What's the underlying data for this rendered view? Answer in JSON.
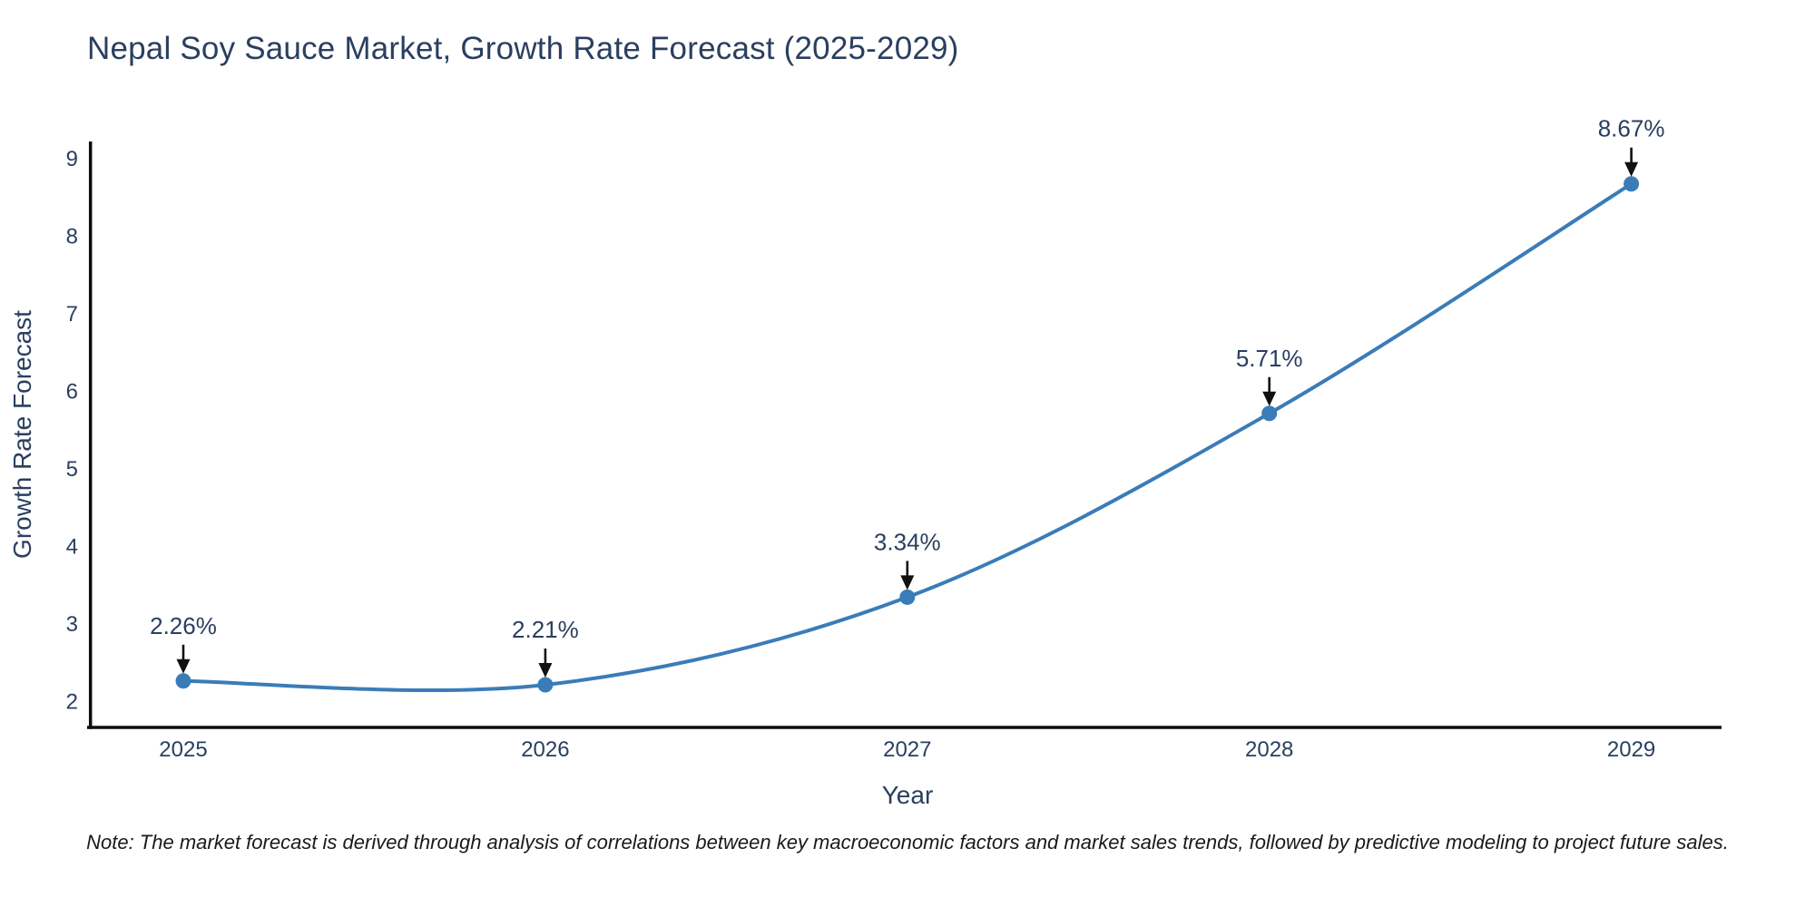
{
  "chart_data": {
    "type": "line",
    "title": "Nepal Soy Sauce Market, Growth Rate Forecast (2025-2029)",
    "xlabel": "Year",
    "ylabel": "Growth Rate Forecast",
    "categories": [
      "2025",
      "2026",
      "2027",
      "2028",
      "2029"
    ],
    "series": [
      {
        "name": "Growth Rate Forecast",
        "values": [
          2.26,
          2.21,
          3.34,
          5.71,
          8.67
        ]
      }
    ],
    "point_labels": [
      "2.26%",
      "2.21%",
      "3.34%",
      "5.71%",
      "8.67%"
    ],
    "ylim": [
      2,
      9
    ],
    "yticks": [
      2,
      3,
      4,
      5,
      6,
      7,
      8,
      9
    ],
    "line_shape": "spline",
    "grid": false,
    "legend_position": "none",
    "note": "Note: The market forecast is derived through analysis of correlations between key macroeconomic factors and market sales trends, followed by predictive modeling to project future sales.",
    "colors": {
      "line": "#3a7cb8",
      "marker": "#3a7cb8",
      "axis_line": "#0d0d0d",
      "text": "#2a3f5f",
      "arrow": "#111111",
      "background": "#ffffff"
    }
  }
}
